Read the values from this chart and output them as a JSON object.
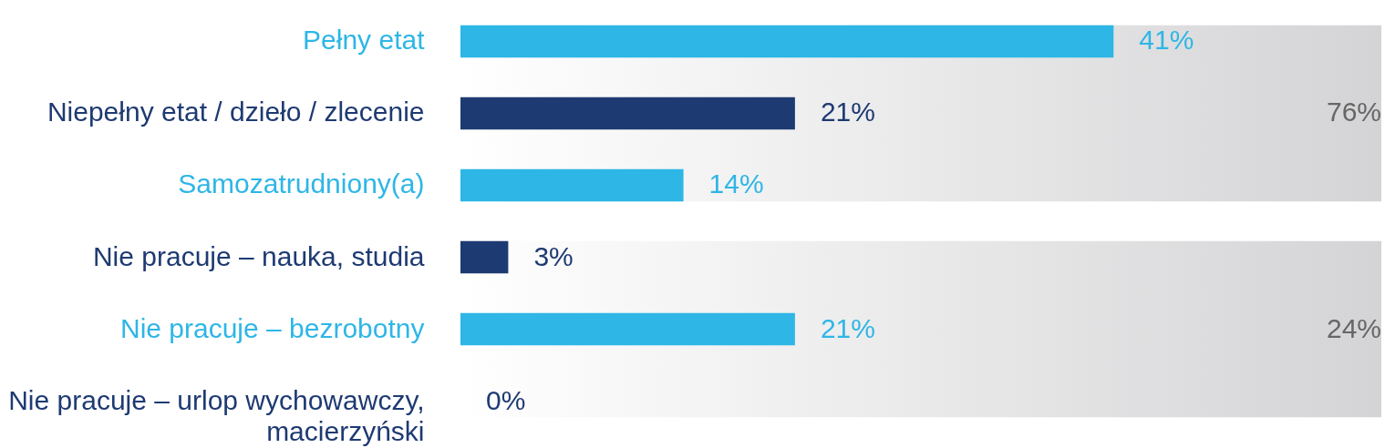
{
  "chart_data": {
    "type": "bar",
    "orientation": "horizontal",
    "categories": [
      "Pełny etat",
      "Niepełny etat / dzieło / zlecenie",
      "Samozatrudniony(a)",
      "Nie pracuje – nauka, studia",
      "Nie pracuje – bezrobotny",
      "Nie pracuje – urlop wychowawczy,\nmacierzyński"
    ],
    "values": [
      41,
      21,
      14,
      3,
      21,
      0
    ],
    "colors": [
      "#2eb6e6",
      "#1e3a72",
      "#2eb6e6",
      "#1e3a72",
      "#2eb6e6",
      "#1e3a72"
    ],
    "value_labels": [
      "41%",
      "21%",
      "14%",
      "3%",
      "21%",
      "0%"
    ],
    "bands": [
      {
        "axis": "y",
        "from": "Pełny etat",
        "to": "Samozatrudniony(a)",
        "label": "76%",
        "color": "#d4d4d6"
      },
      {
        "axis": "y",
        "from": "Nie pracuje – nauka, studia",
        "to": "Nie pracuje – urlop wychowawczy,\nmacierzyński",
        "label": "24%",
        "color": "#d4d4d6"
      }
    ]
  }
}
